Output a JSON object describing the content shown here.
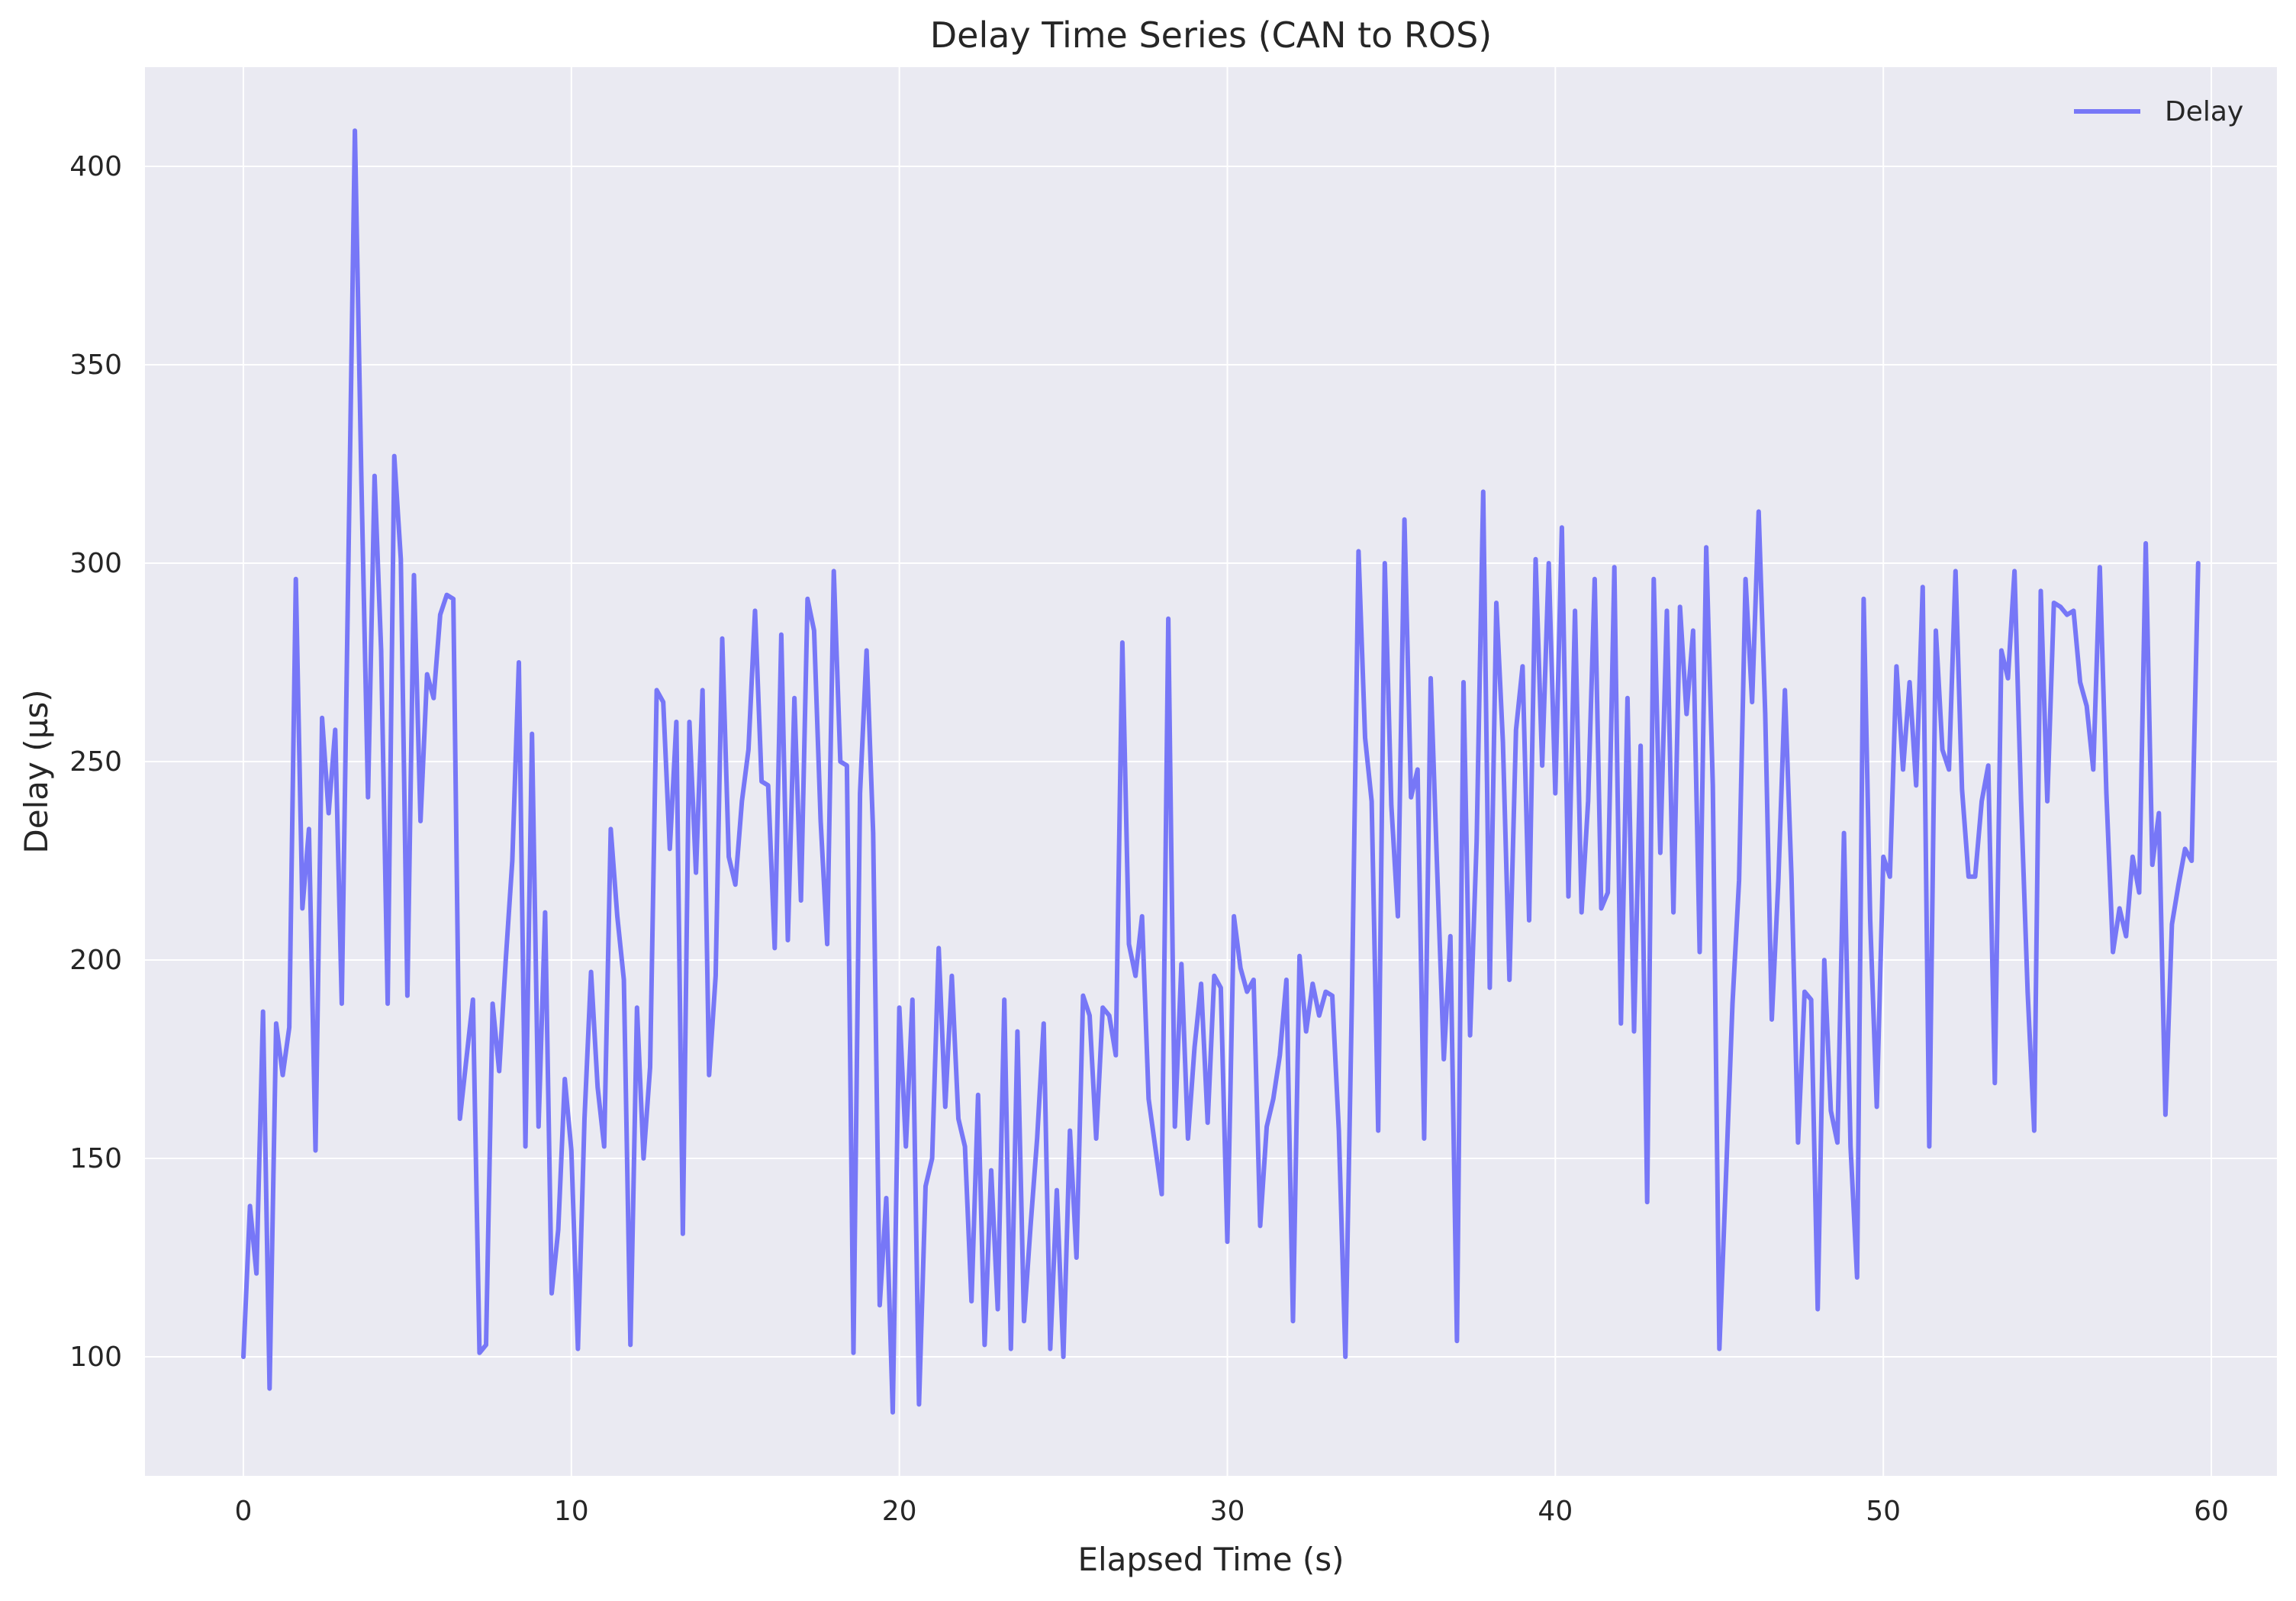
{
  "chart_data": {
    "type": "line",
    "title": "Delay Time Series (CAN to ROS)",
    "xlabel": "Elapsed Time (s)",
    "ylabel": "Delay (µs)",
    "xlim": [
      -3,
      62
    ],
    "ylim": [
      70,
      425
    ],
    "xticks": [
      0,
      10,
      20,
      30,
      40,
      50,
      60
    ],
    "yticks": [
      100,
      150,
      200,
      250,
      300,
      350,
      400
    ],
    "grid": true,
    "legend_position": "top-right",
    "colors": {
      "background": "#eaeaf2",
      "grid": "#ffffff",
      "line": "#7777f7"
    },
    "series": [
      {
        "name": "Delay",
        "x": [
          0,
          0.2,
          0.4,
          0.6,
          0.8,
          1.0,
          1.2,
          1.4,
          1.6,
          1.8,
          2.0,
          2.2,
          2.4,
          2.6,
          2.8,
          3.0,
          3.4,
          3.6,
          3.8,
          4.0,
          4.2,
          4.4,
          4.6,
          4.8,
          5.0,
          5.2,
          5.4,
          5.6,
          5.8,
          6.0,
          6.2,
          6.4,
          6.6,
          6.8,
          7.0,
          7.2,
          7.4,
          7.6,
          7.8,
          8.0,
          8.2,
          8.4,
          8.6,
          8.8,
          9.0,
          9.2,
          9.4,
          9.6,
          9.8,
          10.0,
          10.2,
          10.4,
          10.6,
          10.8,
          11.0,
          11.2,
          11.4,
          11.6,
          11.8,
          12.0,
          12.2,
          12.4,
          12.6,
          12.8,
          13.0,
          13.2,
          13.4,
          13.6,
          13.8,
          14.0,
          14.2,
          14.4,
          14.6,
          14.8,
          15.0,
          15.2,
          15.4,
          15.6,
          15.8,
          16.0,
          16.2,
          16.4,
          16.6,
          16.8,
          17.0,
          17.2,
          17.4,
          17.6,
          17.8,
          18.0,
          18.2,
          18.4,
          18.6,
          18.8,
          19.0,
          19.2,
          19.4,
          19.6,
          19.8,
          20.0,
          20.2,
          20.4,
          20.6,
          20.8,
          21.0,
          21.2,
          21.4,
          21.6,
          21.8,
          22.0,
          22.2,
          22.4,
          22.6,
          22.8,
          23.0,
          23.2,
          23.4,
          23.6,
          23.8,
          24.0,
          24.2,
          24.4,
          24.6,
          24.8,
          25.0,
          25.2,
          25.4,
          25.6,
          25.8,
          26.0,
          26.2,
          26.4,
          26.6,
          26.8,
          27.0,
          27.2,
          27.4,
          27.6,
          27.8,
          28.0,
          28.2,
          28.4,
          28.6,
          28.8,
          29.0,
          29.2,
          29.4,
          29.6,
          29.8,
          30.0,
          30.2,
          30.4,
          30.6,
          30.8,
          31.0,
          31.2,
          31.4,
          31.6,
          31.8,
          32.0,
          32.2,
          32.4,
          32.6,
          32.8,
          33.0,
          33.2,
          33.4,
          33.6,
          33.8,
          34.0,
          34.2,
          34.4,
          34.6,
          34.8,
          35.0,
          35.2,
          35.4,
          35.6,
          35.8,
          36.0,
          36.2,
          36.4,
          36.6,
          36.8,
          37.0,
          37.2,
          37.4,
          37.6,
          37.8,
          38.0,
          38.2,
          38.4,
          38.6,
          38.8,
          39.0,
          39.2,
          39.4,
          39.6,
          39.8,
          40.0,
          40.2,
          40.4,
          40.6,
          40.8,
          41.0,
          41.2,
          41.4,
          41.6,
          41.8,
          42.0,
          42.2,
          42.4,
          42.6,
          42.8,
          43.0,
          43.2,
          43.4,
          43.6,
          43.8,
          44.0,
          44.2,
          44.4,
          44.6,
          44.8,
          45.0,
          45.2,
          45.4,
          45.6,
          45.8,
          46.0,
          46.2,
          46.4,
          46.6,
          46.8,
          47.0,
          47.2,
          47.4,
          47.6,
          47.8,
          48.0,
          48.2,
          48.4,
          48.6,
          48.8,
          49.0,
          49.2,
          49.4,
          49.6,
          49.8,
          50.0,
          50.2,
          50.4,
          50.6,
          50.8,
          51.0,
          51.2,
          51.4,
          51.6,
          51.8,
          52.0,
          52.2,
          52.4,
          52.6,
          52.8,
          53.0,
          53.2,
          53.4,
          53.6,
          53.8,
          54.0,
          54.2,
          54.4,
          54.6,
          54.8,
          55.0,
          55.2,
          55.4,
          55.6,
          55.8,
          56.0,
          56.2,
          56.4,
          56.6,
          56.8,
          57.0,
          57.2,
          57.4,
          57.6,
          57.8,
          58.0,
          58.2,
          58.4,
          58.6,
          58.8,
          59.0,
          59.2,
          59.4,
          59.6
        ],
        "values": [
          100,
          138,
          121,
          187,
          92,
          184,
          171,
          183,
          296,
          213,
          233,
          152,
          261,
          237,
          258,
          189,
          409,
          320,
          241,
          322,
          278,
          189,
          327,
          301,
          191,
          297,
          235,
          272,
          266,
          287,
          292,
          291,
          160,
          175,
          190,
          101,
          103,
          189,
          172,
          200,
          225,
          275,
          153,
          257,
          158,
          212,
          116,
          132,
          170,
          152,
          102,
          160,
          197,
          168,
          153,
          233,
          211,
          195,
          103,
          188,
          150,
          173,
          268,
          265,
          228,
          260,
          131,
          260,
          222,
          268,
          171,
          196,
          281,
          226,
          219,
          240,
          253,
          288,
          245,
          244,
          203,
          282,
          205,
          266,
          215,
          291,
          283,
          235,
          204,
          298,
          250,
          249,
          101,
          242,
          278,
          232,
          113,
          140,
          86,
          188,
          153,
          190,
          88,
          143,
          150,
          203,
          163,
          196,
          160,
          153,
          114,
          166,
          103,
          147,
          112,
          190,
          102,
          182,
          109,
          133,
          155,
          184,
          102,
          142,
          100,
          157,
          125,
          191,
          186,
          155,
          188,
          186,
          176,
          280,
          204,
          196,
          211,
          165,
          153,
          141,
          286,
          158,
          199,
          155,
          178,
          194,
          159,
          196,
          193,
          129,
          211,
          198,
          192,
          195,
          133,
          158,
          165,
          176,
          195,
          109,
          201,
          182,
          194,
          186,
          192,
          191,
          157,
          100,
          191,
          303,
          256,
          240,
          157,
          300,
          239,
          211,
          311,
          241,
          248,
          155,
          271,
          222,
          175,
          206,
          104,
          270,
          181,
          230,
          318,
          193,
          290,
          255,
          195,
          258,
          274,
          210,
          301,
          249,
          300,
          242,
          309,
          216,
          288,
          212,
          240,
          296,
          213,
          217,
          299,
          184,
          266,
          182,
          254,
          139,
          296,
          227,
          288,
          212,
          289,
          262,
          283,
          202,
          304,
          244,
          102,
          145,
          189,
          220,
          296,
          265,
          313,
          262,
          185,
          220,
          268,
          221,
          154,
          192,
          190,
          112,
          200,
          162,
          154,
          232,
          153,
          120,
          291,
          210,
          163,
          226,
          221,
          274,
          248,
          270,
          244,
          294,
          153,
          283,
          253,
          248,
          298,
          243,
          221,
          221,
          240,
          249,
          169,
          278,
          271,
          298,
          240,
          192,
          157,
          293,
          240,
          290,
          289,
          287,
          288,
          270,
          264,
          248,
          299,
          242,
          202,
          213,
          206,
          226,
          217,
          305,
          224,
          237,
          161,
          209,
          219,
          228,
          225,
          300
        ]
      }
    ]
  }
}
